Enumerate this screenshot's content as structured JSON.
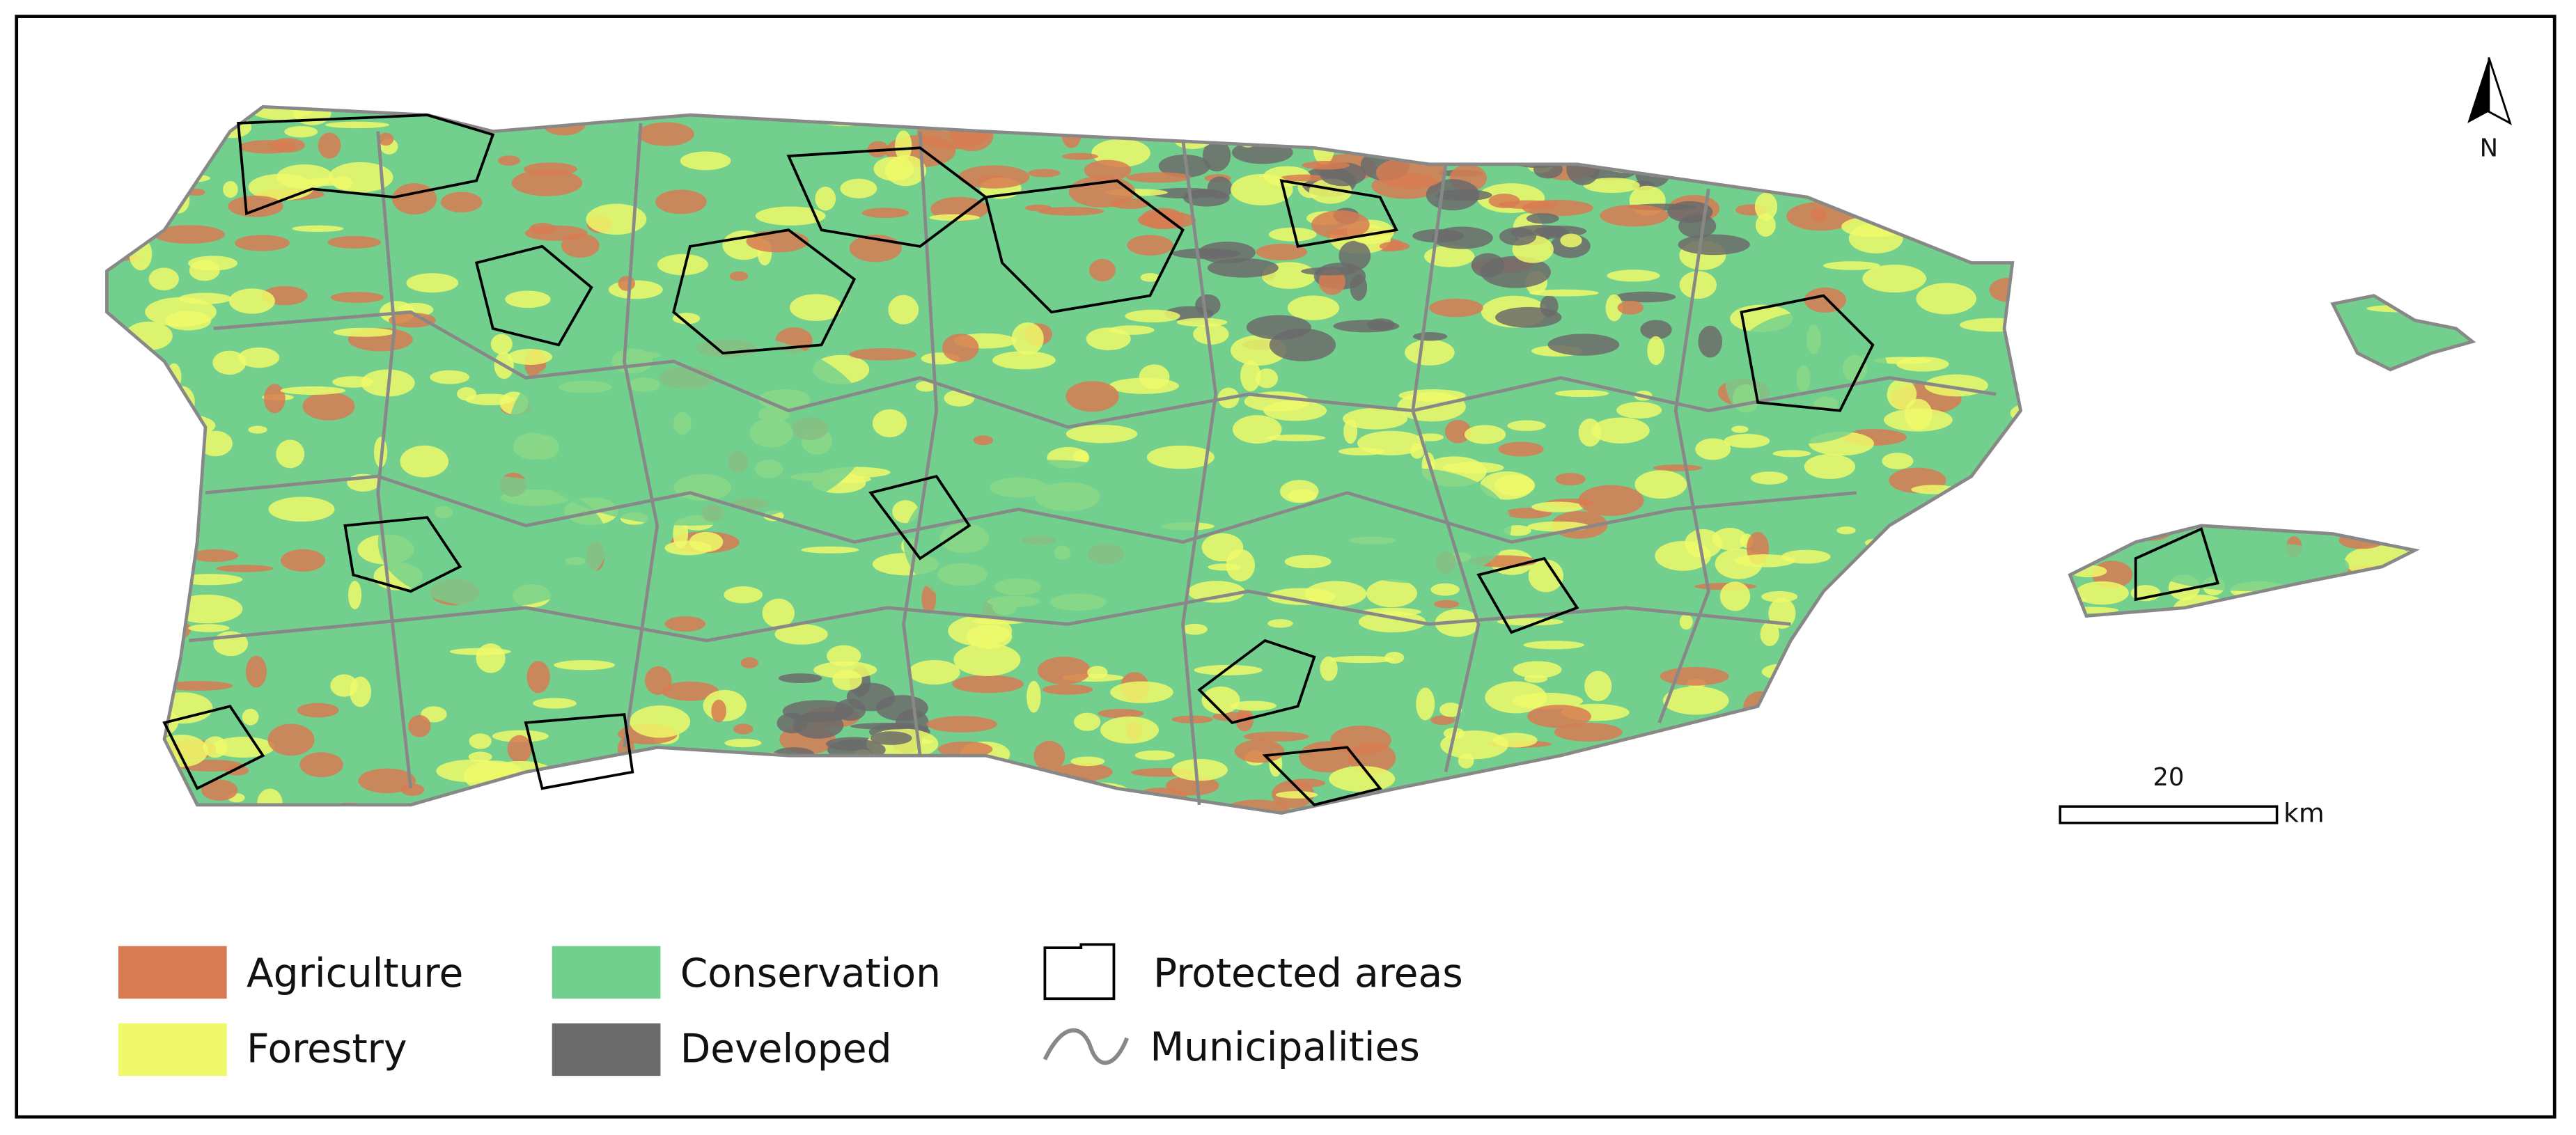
{
  "legend": {
    "items": [
      {
        "label": "Agriculture",
        "color": "#d87b52"
      },
      {
        "label": "Forestry",
        "color": "#eff96a"
      },
      {
        "label": "Conservation",
        "color": "#72cf8e"
      },
      {
        "label": "Developed",
        "color": "#6b6b6b"
      },
      {
        "label": "Protected areas"
      },
      {
        "label": "Municipalities"
      }
    ]
  },
  "north_arrow": "N",
  "scale_bar": {
    "length": 20,
    "unit": "km"
  }
}
